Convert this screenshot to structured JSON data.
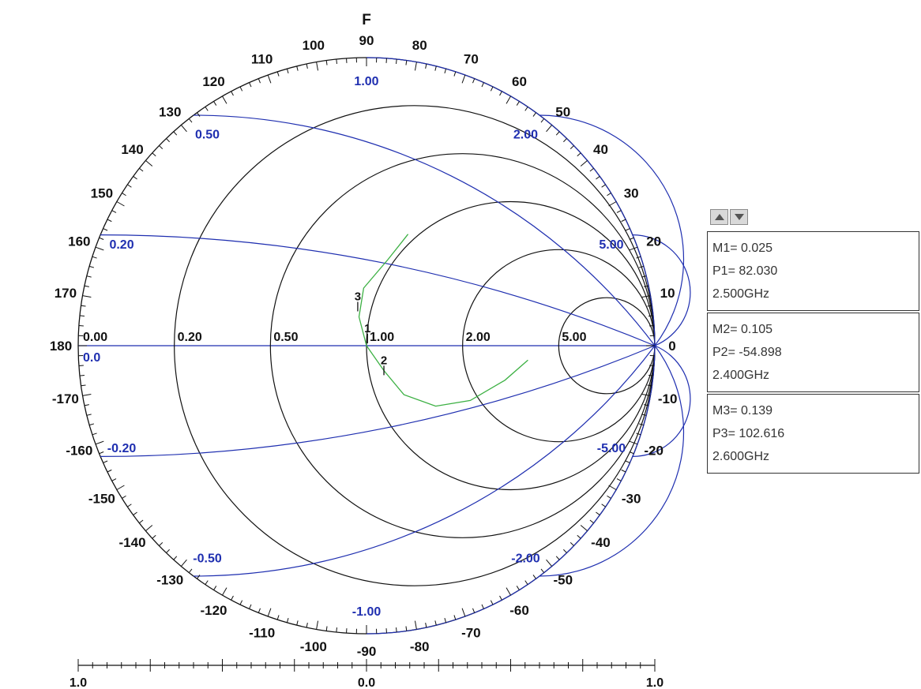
{
  "chart_data": {
    "type": "smith",
    "title": "F",
    "angle_labels": [
      "90",
      "80",
      "70",
      "60",
      "50",
      "40",
      "30",
      "20",
      "10",
      "0",
      "-10",
      "-20",
      "-30",
      "-40",
      "-50",
      "-60",
      "-70",
      "-80",
      "-90",
      "-100",
      "-110",
      "-120",
      "-130",
      "-140",
      "-150",
      "-160",
      "-170",
      "180",
      "170",
      "160",
      "150",
      "140",
      "130",
      "120",
      "110",
      "100"
    ],
    "resistance_circles": [
      {
        "r": 0.2,
        "label": "0.20"
      },
      {
        "r": 0.5,
        "label": "0.50"
      },
      {
        "r": 1.0,
        "label": "1.00"
      },
      {
        "r": 2.0,
        "label": "2.00"
      },
      {
        "r": 5.0,
        "label": "5.00"
      }
    ],
    "zero_labels": {
      "resistance": "0.00",
      "reactance": "0.0"
    },
    "reactance_arcs": [
      {
        "x": 0.2,
        "label": "0.20"
      },
      {
        "x": 0.5,
        "label": "0.50"
      },
      {
        "x": 1.0,
        "label": "1.00"
      },
      {
        "x": 2.0,
        "label": "2.00"
      },
      {
        "x": 5.0,
        "label": "5.00"
      },
      {
        "x": -0.2,
        "label": "-0.20"
      },
      {
        "x": -0.5,
        "label": "-0.50"
      },
      {
        "x": -1.0,
        "label": "-1.00"
      },
      {
        "x": -2.0,
        "label": "-2.00"
      },
      {
        "x": -5.0,
        "label": "-5.00"
      }
    ],
    "trace": {
      "color": "#3cb043",
      "points": [
        [
          0.144,
          0.387
        ],
        [
          0.075,
          0.3
        ],
        [
          -0.01,
          0.2
        ],
        [
          -0.026,
          0.1
        ],
        [
          0.0,
          0.0
        ],
        [
          0.06,
          -0.086
        ],
        [
          0.13,
          -0.17
        ],
        [
          0.24,
          -0.21
        ],
        [
          0.36,
          -0.19
        ],
        [
          0.48,
          -0.12
        ],
        [
          0.56,
          -0.05
        ]
      ]
    },
    "markers": [
      {
        "id": "1",
        "magnitude": 0.025,
        "phase_deg": 82.03,
        "freq": "2.500GHz"
      },
      {
        "id": "2",
        "magnitude": 0.105,
        "phase_deg": -54.898,
        "freq": "2.400GHz"
      },
      {
        "id": "3",
        "magnitude": 0.139,
        "phase_deg": 102.616,
        "freq": "2.600GHz"
      }
    ],
    "scale": {
      "labels": [
        "1.0",
        "0.0",
        "1.0"
      ]
    },
    "colors": {
      "grid": "#111111",
      "reactance": "#1f2fb0",
      "trace": "#3cb043",
      "marker_box": "#333333"
    }
  },
  "panel": {
    "controls": [
      "scroll-up",
      "scroll-down"
    ],
    "m1": {
      "m": "M1= 0.025",
      "p": "P1= 82.030",
      "f": "2.500GHz"
    },
    "m2": {
      "m": "M2= 0.105",
      "p": "P2= -54.898",
      "f": "2.400GHz"
    },
    "m3": {
      "m": "M3= 0.139",
      "p": "P3= 102.616",
      "f": "2.600GHz"
    }
  }
}
